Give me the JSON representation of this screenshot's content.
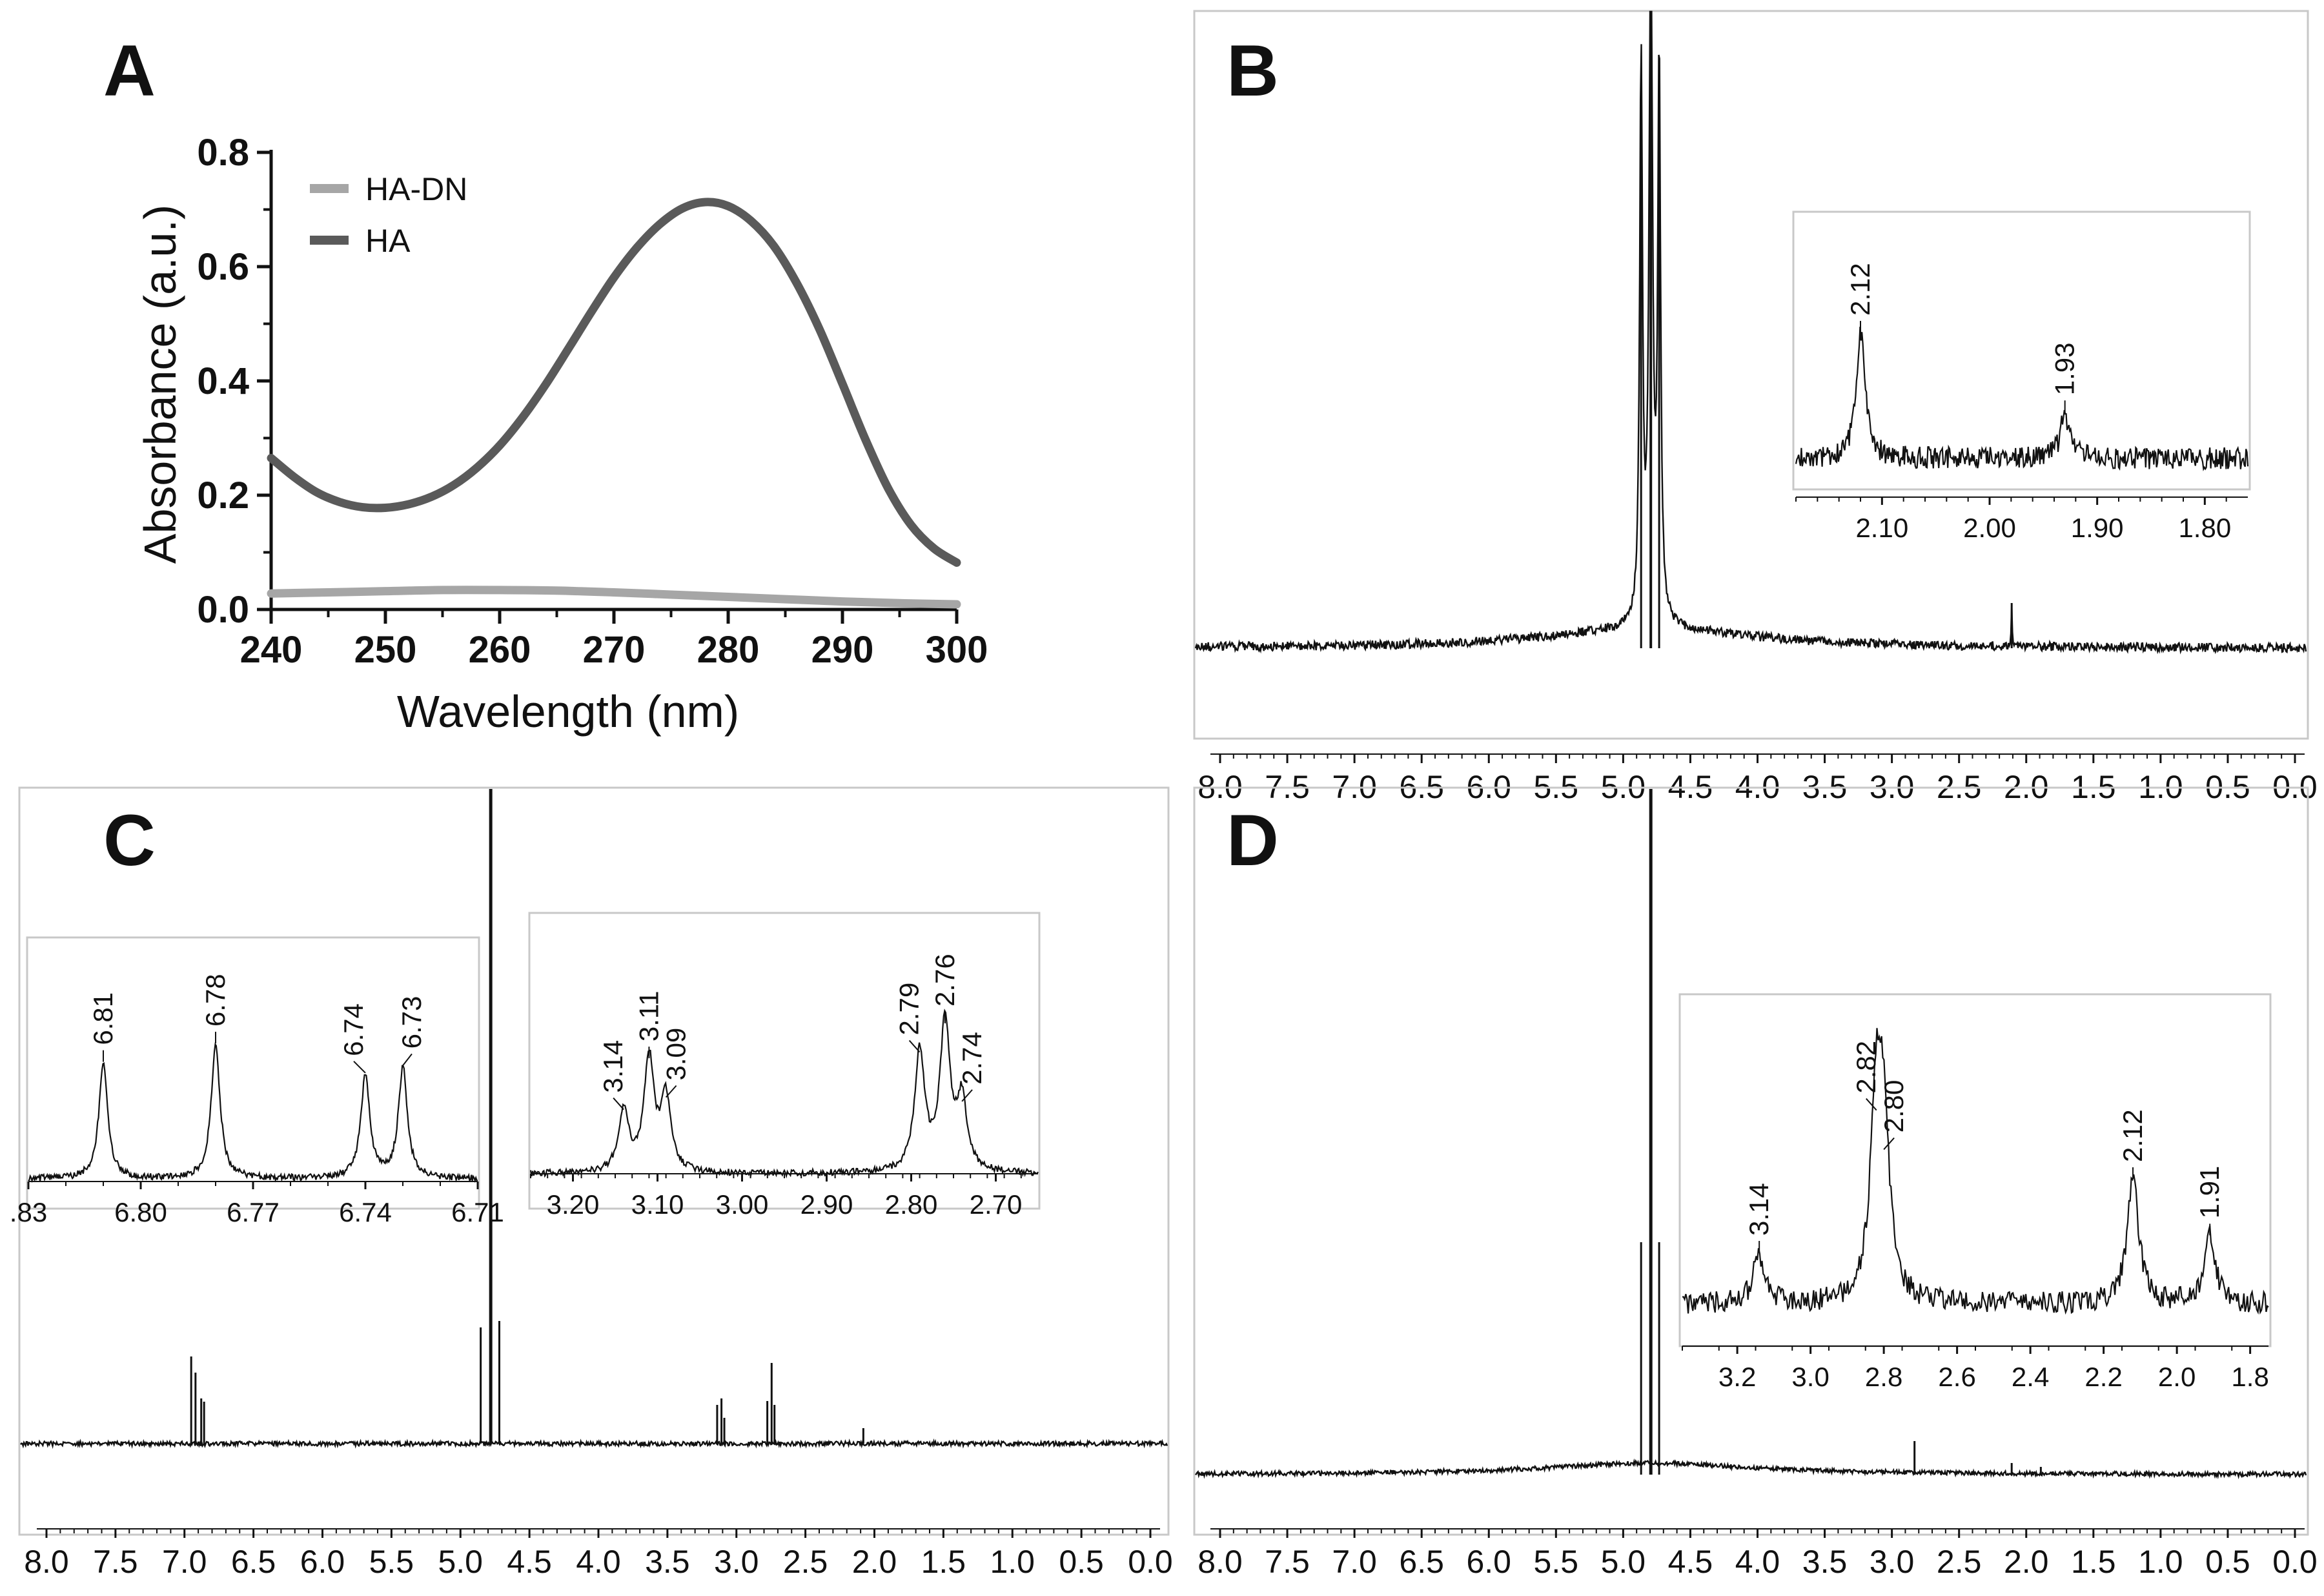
{
  "panels": {
    "A": {
      "label": "A",
      "chart_data": {
        "type": "line",
        "xlabel": "Wavelength (nm)",
        "ylabel": "Absorbance (a.u.)",
        "xlim": [
          240,
          300
        ],
        "ylim": [
          0,
          0.8
        ],
        "x_ticks": [
          "240",
          "250",
          "260",
          "270",
          "280",
          "290",
          "300"
        ],
        "y_ticks": [
          "0.0",
          "0.2",
          "0.4",
          "0.6",
          "0.8"
        ],
        "legend": "top-left",
        "series": [
          {
            "name": "HA-DN",
            "color": "#a6a6a6",
            "x": [
              240,
              245,
              250,
              255,
              260,
              265,
              270,
              275,
              280,
              285,
              290,
              295,
              300
            ],
            "y": [
              0.028,
              0.03,
              0.032,
              0.034,
              0.034,
              0.033,
              0.03,
              0.026,
              0.022,
              0.018,
              0.014,
              0.011,
              0.009
            ]
          },
          {
            "name": "HA",
            "color": "#5a5a5a",
            "x": [
              240,
              242,
              244,
              246,
              248,
              250,
              252,
              254,
              256,
              258,
              260,
              262,
              264,
              266,
              268,
              270,
              272,
              274,
              276,
              278,
              280,
              282,
              284,
              286,
              288,
              290,
              292,
              294,
              296,
              298,
              300
            ],
            "y": [
              0.265,
              0.232,
              0.205,
              0.188,
              0.179,
              0.178,
              0.184,
              0.197,
              0.218,
              0.248,
              0.287,
              0.336,
              0.393,
              0.456,
              0.52,
              0.581,
              0.633,
              0.674,
              0.702,
              0.713,
              0.706,
              0.68,
              0.636,
              0.571,
              0.49,
              0.395,
              0.298,
              0.212,
              0.148,
              0.107,
              0.082
            ]
          }
        ]
      }
    },
    "B": {
      "label": "B",
      "chart_data": {
        "type": "line",
        "xlabel": "",
        "ylabel": "",
        "xlim": [
          8.0,
          0.0
        ],
        "x_ticks": [
          "8.0",
          "7.5",
          "7.0",
          "6.5",
          "6.0",
          "5.5",
          "5.0",
          "4.5",
          "4.0",
          "3.5",
          "3.0",
          "2.5",
          "2.0",
          "1.5",
          "1.0",
          "0.5",
          "0.0"
        ],
        "series": [
          {
            "name": "spectrum",
            "peaks_ppm": [
              4.79,
              4.72,
              4.66,
              2.12
            ],
            "peak_heights": [
              0.85,
              1.2,
              0.77,
              0.1
            ]
          }
        ],
        "insets": [
          {
            "xlim": [
              2.18,
              1.76
            ],
            "x_ticks": [
              "2.10",
              "2.00",
              "1.90",
              "1.80"
            ],
            "peaks": [
              {
                "ppm": 2.12,
                "label": "2.12",
                "height": 0.62
              },
              {
                "ppm": 1.93,
                "label": "1.93",
                "height": 0.22
              }
            ]
          }
        ]
      }
    },
    "C": {
      "label": "C",
      "chart_data": {
        "type": "line",
        "xlabel": "",
        "ylabel": "",
        "xlim": [
          8.0,
          0.0
        ],
        "x_ticks": [
          "8.0",
          "7.5",
          "7.0",
          "6.5",
          "6.0",
          "5.5",
          "5.0",
          "4.5",
          "4.0",
          "3.5",
          "3.0",
          "2.5",
          "2.0",
          "1.5",
          "1.0",
          "0.5",
          "0.0"
        ],
        "series": [
          {
            "name": "spectrum",
            "peaks_ppm": [
              6.81,
              6.78,
              6.74,
              6.73,
              4.79,
              4.72,
              4.66,
              3.14,
              3.11,
              3.09,
              2.79,
              2.76,
              2.74,
              2.12
            ]
          }
        ],
        "insets": [
          {
            "xlim": [
              6.83,
              6.71
            ],
            "x_ticks": [
              ".83",
              "6.80",
              "6.77",
              "6.74",
              "6.71"
            ],
            "peaks": [
              {
                "ppm": 6.81,
                "label": "6.81",
                "height": 0.62
              },
              {
                "ppm": 6.78,
                "label": "6.78",
                "height": 0.72
              },
              {
                "ppm": 6.74,
                "label": "6.74",
                "height": 0.56
              },
              {
                "ppm": 6.73,
                "label": "6.73",
                "height": 0.6
              }
            ]
          },
          {
            "xlim": [
              3.25,
              2.65
            ],
            "x_ticks": [
              "3.20",
              "3.10",
              "3.00",
              "2.90",
              "2.80",
              "2.70"
            ],
            "peaks": [
              {
                "ppm": 3.14,
                "label": "3.14",
                "height": 0.3
              },
              {
                "ppm": 3.11,
                "label": "3.11",
                "height": 0.55
              },
              {
                "ppm": 3.09,
                "label": "3.09",
                "height": 0.36
              },
              {
                "ppm": 2.79,
                "label": "2.79",
                "height": 0.58
              },
              {
                "ppm": 2.76,
                "label": "2.76",
                "height": 0.72
              },
              {
                "ppm": 2.74,
                "label": "2.74",
                "height": 0.34
              }
            ]
          }
        ]
      }
    },
    "D": {
      "label": "D",
      "chart_data": {
        "type": "line",
        "xlabel": "",
        "ylabel": "",
        "xlim": [
          8.0,
          0.0
        ],
        "x_ticks": [
          "8.0",
          "7.5",
          "7.0",
          "6.5",
          "6.0",
          "5.5",
          "5.0",
          "4.5",
          "4.0",
          "3.5",
          "3.0",
          "2.5",
          "2.0",
          "1.5",
          "1.0",
          "0.5",
          "0.0"
        ],
        "series": [
          {
            "name": "spectrum",
            "peaks_ppm": [
              4.79,
              4.72,
              4.66,
              2.82,
              2.12,
              1.91
            ]
          }
        ],
        "insets": [
          {
            "xlim": [
              3.35,
              1.75
            ],
            "x_ticks": [
              "3.2",
              "3.0",
              "2.8",
              "2.6",
              "2.4",
              "2.2",
              "2.0",
              "1.8"
            ],
            "peaks": [
              {
                "ppm": 3.14,
                "label": "3.14",
                "height": 0.2
              },
              {
                "ppm": 2.82,
                "label": "2.82",
                "height": 0.78
              },
              {
                "ppm": 2.8,
                "label": "2.80",
                "height": 0.62
              },
              {
                "ppm": 2.12,
                "label": "2.12",
                "height": 0.5
              },
              {
                "ppm": 1.91,
                "label": "1.91",
                "height": 0.27
              }
            ]
          }
        ]
      }
    }
  }
}
